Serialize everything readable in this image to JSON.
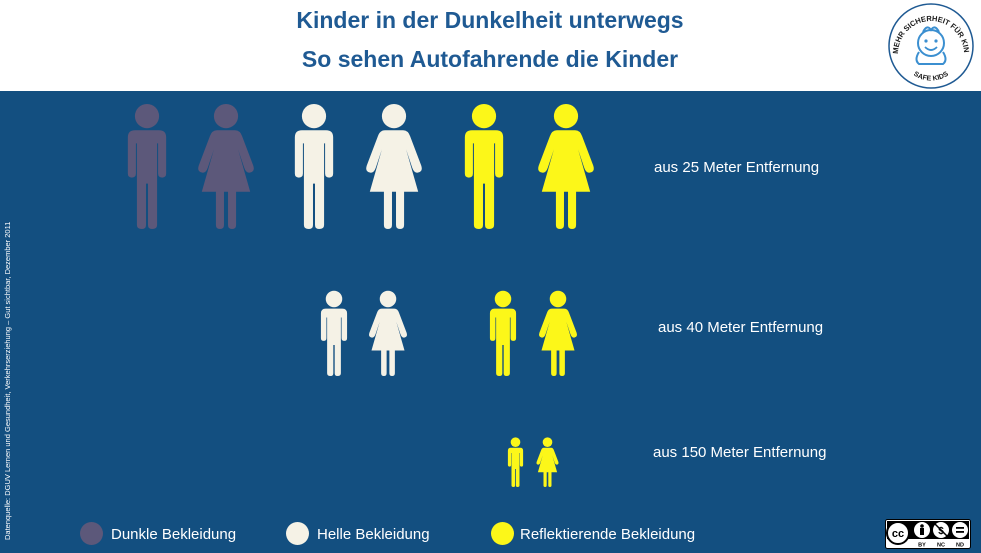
{
  "header": {
    "title_line1": "Kinder in der Dunkelheit unterwegs",
    "title_line2": "So sehen Autofahrende die Kinder"
  },
  "logo": {
    "text_top": "MEHR SICHERHEIT FÜR KINDER",
    "text_bottom": "SAFE KIDS"
  },
  "source": "Datenquelle: DGUV Lernen und Gesundheit, Verkehrserziehung – Gut sichtbar, Dezember 2011",
  "colors": {
    "background": "#134f80",
    "dark": "#5c587a",
    "light": "#f5f2e6",
    "reflective": "#fcf719",
    "title": "#1f5a93"
  },
  "rows": [
    {
      "label": "aus 25 Meter Entfernung"
    },
    {
      "label": "aus 40 Meter Entfernung"
    },
    {
      "label": "aus 150 Meter Entfernung"
    }
  ],
  "legend": [
    {
      "label": "Dunkle Bekleidung",
      "color": "#5c587a"
    },
    {
      "label": "Helle Bekleidung",
      "color": "#f5f2e6"
    },
    {
      "label": "Reflektierende Bekleidung",
      "color": "#fcf719"
    }
  ],
  "license": {
    "cc": "cc",
    "by": "BY",
    "nc": "NC",
    "nd": "ND"
  }
}
